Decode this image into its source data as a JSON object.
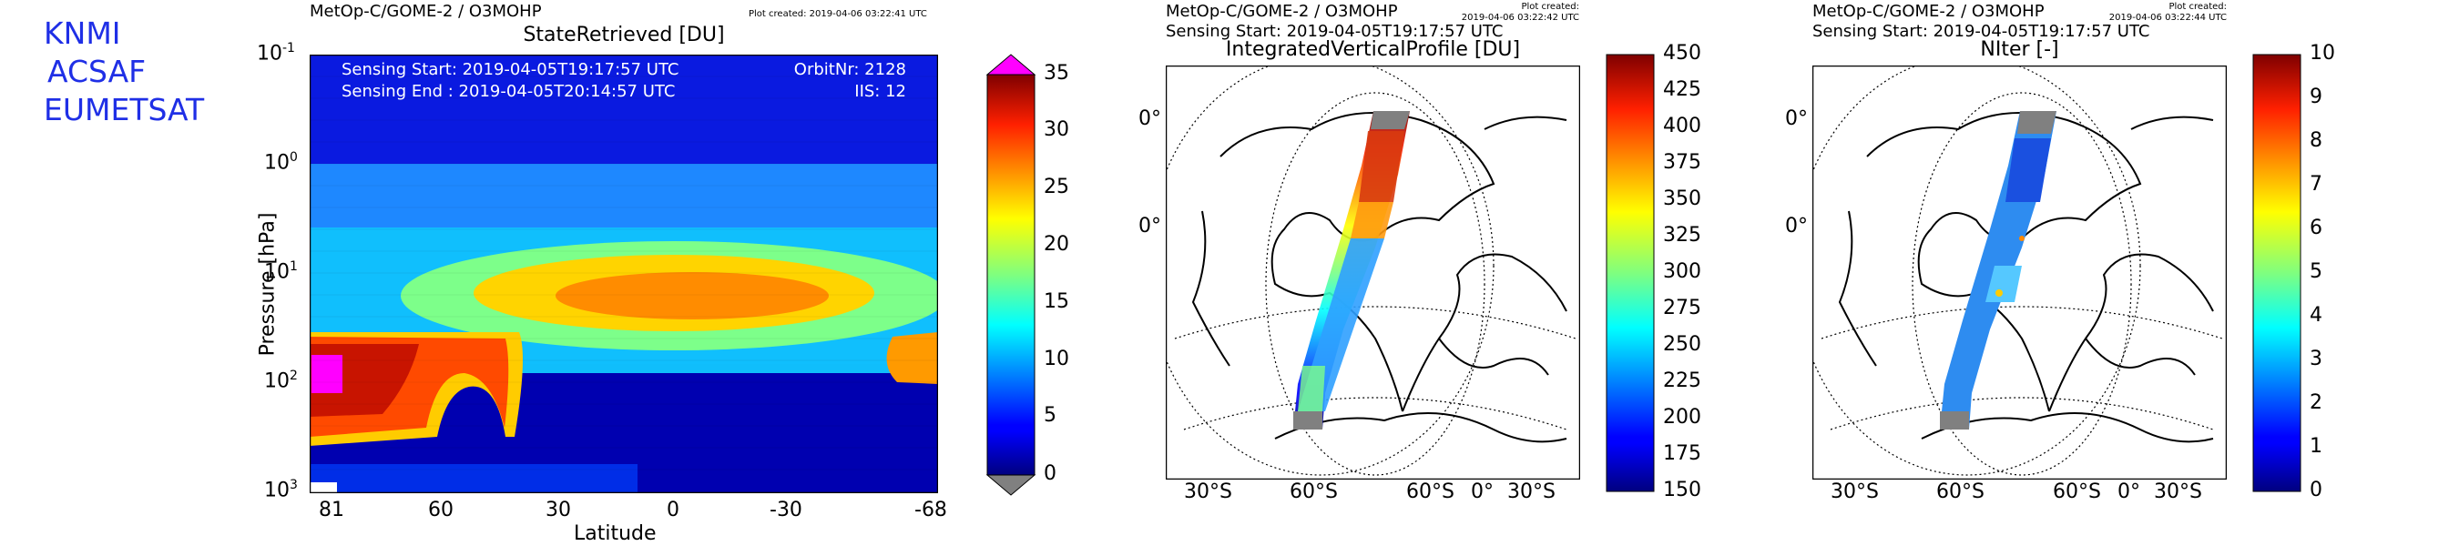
{
  "logo": {
    "lines": [
      "KNMI",
      "ACSAF",
      "EUMETSAT"
    ]
  },
  "panels": [
    {
      "product_line": "MetOp-C/GOME-2 / O3MOHP",
      "plot_created": "Plot created: 2019-04-06 03:22:41 UTC",
      "title": "StateRetrieved [DU]",
      "info_left_1": "Sensing Start: 2019-04-05T19:17:57 UTC",
      "info_left_2": "Sensing End   : 2019-04-05T20:14:57 UTC",
      "info_right_1": "OrbitNr: 2128",
      "info_right_2": "IIS: 12",
      "ylabel": "Pressure [hPa]",
      "xlabel": "Latitude",
      "y_ticks": [
        {
          "base": "10",
          "exp": "-1"
        },
        {
          "base": "10",
          "exp": "0"
        },
        {
          "base": "10",
          "exp": "1"
        },
        {
          "base": "10",
          "exp": "2"
        },
        {
          "base": "10",
          "exp": "3"
        }
      ],
      "x_ticks": [
        "81",
        "60",
        "30",
        "0",
        "-30",
        "-68"
      ],
      "colorbar_ticks": [
        "35",
        "30",
        "25",
        "20",
        "15",
        "10",
        "5",
        "0"
      ]
    },
    {
      "product_line": "MetOp-C/GOME-2 / O3MOHP",
      "sensing_line": "Sensing Start: 2019-04-05T19:17:57 UTC",
      "plot_created_1": "Plot created:",
      "plot_created_2": "2019-04-06 03:22:42 UTC",
      "title": "IntegratedVerticalProfile [DU]",
      "left_labels": [
        "0°",
        "0°"
      ],
      "bottom_labels": [
        "30°S",
        "60°S",
        "60°S",
        "0°",
        "30°S"
      ],
      "colorbar_ticks": [
        "450",
        "425",
        "400",
        "375",
        "350",
        "325",
        "300",
        "275",
        "250",
        "225",
        "200",
        "175",
        "150"
      ]
    },
    {
      "product_line": "MetOp-C/GOME-2 / O3MOHP",
      "sensing_line": "Sensing Start: 2019-04-05T19:17:57 UTC",
      "plot_created_1": "Plot created:",
      "plot_created_2": "2019-04-06 03:22:44 UTC",
      "title": "NIter [-]",
      "left_labels": [
        "0°",
        "0°"
      ],
      "bottom_labels": [
        "30°S",
        "60°S",
        "60°S",
        "0°",
        "30°S"
      ],
      "colorbar_ticks": [
        "10",
        "9",
        "8",
        "7",
        "6",
        "5",
        "4",
        "3",
        "2",
        "1",
        "0"
      ]
    }
  ],
  "chart_data": [
    {
      "type": "heatmap",
      "title": "StateRetrieved [DU]",
      "xlabel": "Latitude",
      "ylabel": "Pressure [hPa]",
      "xlim": [
        81,
        -68
      ],
      "ylim": [
        1000,
        0.1
      ],
      "y_scale": "log",
      "colorbar_range": [
        0,
        35
      ],
      "colormap": "jet",
      "over_color": "#ff00ff",
      "under_color": "#808080"
    },
    {
      "type": "heatmap",
      "title": "IntegratedVerticalProfile [DU]",
      "colorbar_range": [
        150,
        450
      ],
      "colormap": "jet"
    },
    {
      "type": "heatmap",
      "title": "NIter [-]",
      "colorbar_range": [
        0,
        10
      ],
      "colormap": "jet"
    }
  ],
  "colors": {
    "logo": "#1f2fe6",
    "overflow": "#ff00ff",
    "underflow": "#808080"
  }
}
